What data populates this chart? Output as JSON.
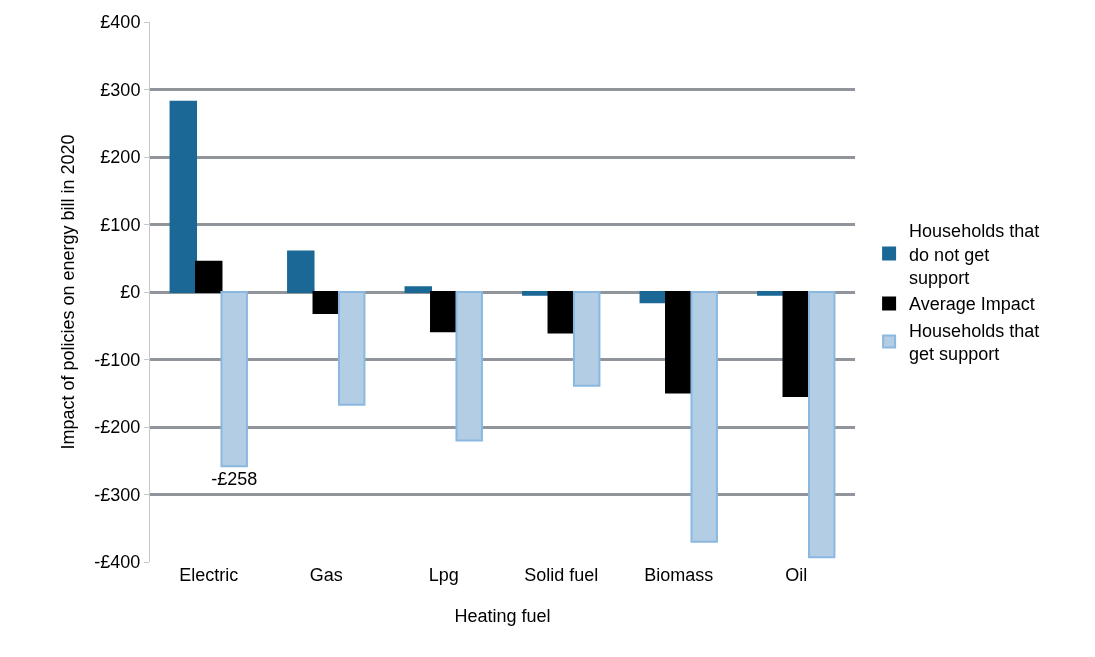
{
  "chart_data": {
    "type": "bar",
    "xlabel": "Heating fuel",
    "ylabel": "Impact of policies on energy bill in 2020",
    "categories": [
      "Electric",
      "Gas",
      "Lpg",
      "Solid fuel",
      "Biomass",
      "Oil"
    ],
    "series": [
      {
        "name": "Households that do not get support",
        "color": "#1b6896",
        "values": [
          282,
          60,
          7,
          -4,
          -15,
          -4
        ]
      },
      {
        "name": "Average Impact",
        "color": "#000000",
        "values": [
          45,
          -31,
          -58,
          -60,
          -149,
          -154
        ]
      },
      {
        "name": "Households that get support",
        "color": "#b3cde4",
        "values": [
          -258,
          -167,
          -220,
          -139,
          -370,
          -393
        ],
        "value_labels": [
          "-£258",
          null,
          null,
          null,
          null,
          null
        ]
      }
    ],
    "ylim": [
      -400,
      400
    ],
    "yticks": [
      {
        "value": -400,
        "label": "-£400"
      },
      {
        "value": -300,
        "label": "-£300"
      },
      {
        "value": -200,
        "label": "-£200"
      },
      {
        "value": -100,
        "label": "-£100"
      },
      {
        "value": 0,
        "label": "£0"
      },
      {
        "value": 100,
        "label": "£100"
      },
      {
        "value": 200,
        "label": "£200"
      },
      {
        "value": 300,
        "label": "£300"
      },
      {
        "value": 400,
        "label": "£400"
      }
    ],
    "grid": "y",
    "legend": "right"
  }
}
